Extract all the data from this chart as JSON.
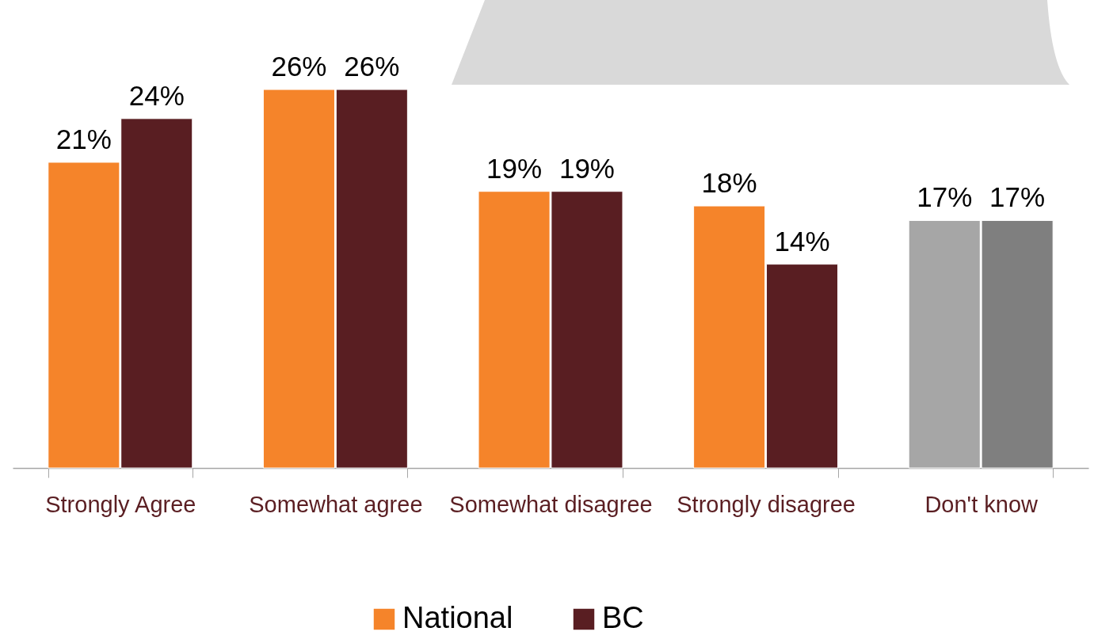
{
  "chart_data": {
    "type": "bar",
    "categories": [
      "Strongly Agree",
      "Somewhat agree",
      "Somewhat disagree",
      "Strongly disagree",
      "Don't know"
    ],
    "series": [
      {
        "name": "National",
        "color": "#f5842a",
        "colors": [
          "#f5842a",
          "#f5842a",
          "#f5842a",
          "#f5842a",
          "#a6a6a6"
        ],
        "values": [
          21,
          26,
          19,
          18,
          17
        ],
        "value_labels": [
          "21%",
          "26%",
          "19%",
          "18%",
          "17%"
        ]
      },
      {
        "name": "BC",
        "color": "#591e22",
        "colors": [
          "#591e22",
          "#591e22",
          "#591e22",
          "#591e22",
          "#7f7f7f"
        ],
        "values": [
          24,
          26,
          19,
          14,
          17
        ],
        "value_labels": [
          "24%",
          "26%",
          "19%",
          "14%",
          "17%"
        ]
      }
    ],
    "grid": false,
    "legend": "bottom",
    "tick_labels": "x"
  }
}
